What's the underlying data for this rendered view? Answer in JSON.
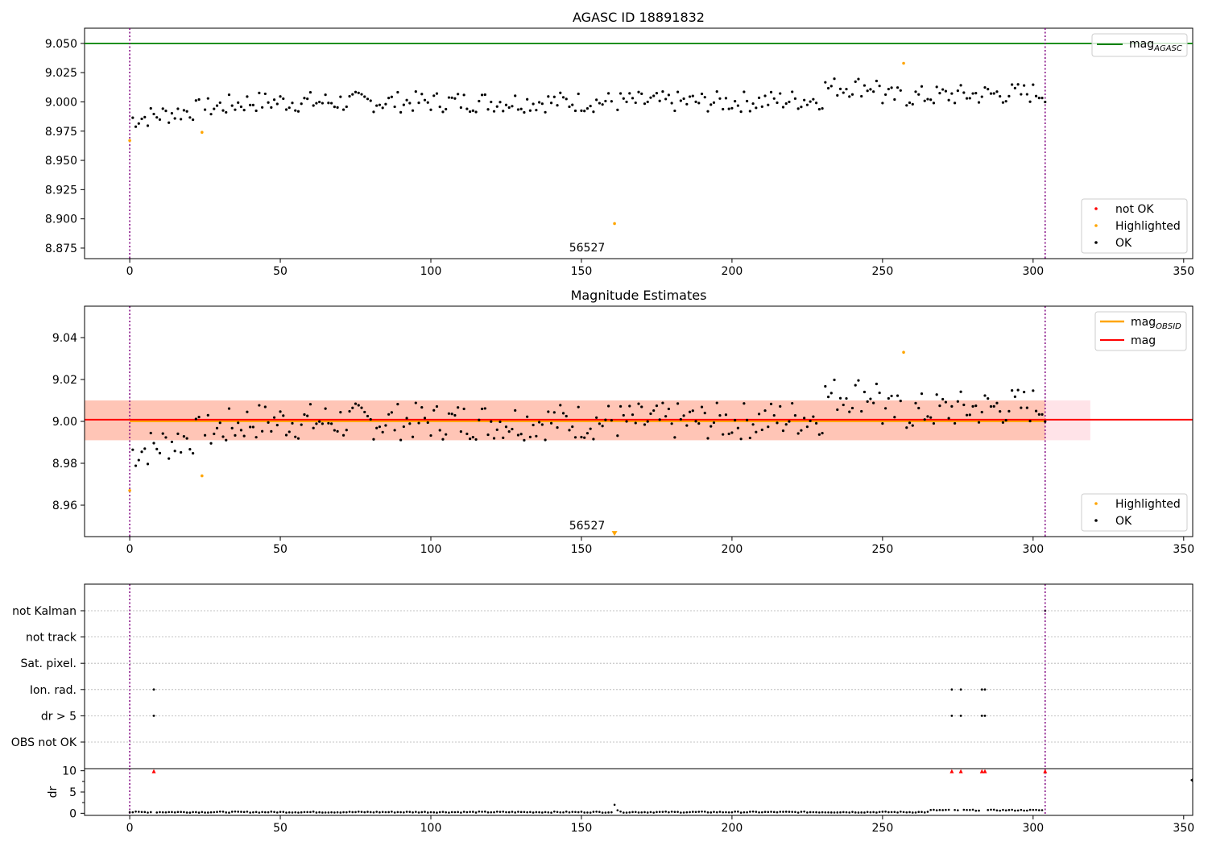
{
  "colors": {
    "ok": "#000000",
    "highlighted": "#ffa500",
    "not_ok": "#ff0000",
    "agasc_line": "#008000",
    "mag_line": "#ff0000",
    "mag_obsid_line": "#ffa500",
    "band_outer": "#ffc0cb",
    "band_inner": "#ffa07a",
    "obsid_divider": "#800080",
    "flag_grid": "#b0b0b0"
  },
  "chart_data": [
    {
      "type": "scatter",
      "title": "AGASC ID 18891832",
      "xlabel": "",
      "ylabel": "",
      "xlim": [
        -15,
        353
      ],
      "ylim": [
        8.866,
        9.063
      ],
      "xticks": [
        0,
        50,
        100,
        150,
        200,
        250,
        300,
        350
      ],
      "yticks": [
        "8.875",
        "8.900",
        "8.925",
        "8.950",
        "8.975",
        "9.000",
        "9.025",
        "9.050"
      ],
      "hlines": [
        {
          "name": "mag_AGASC",
          "label_main": "mag",
          "label_sub": "AGASC",
          "y": 9.05,
          "color": "#008000"
        }
      ],
      "vlines_x": [
        0,
        304
      ],
      "annotations": [
        {
          "text": "56527",
          "x": 152,
          "y": 8.871
        }
      ],
      "highlighted_points": [
        {
          "x": 0,
          "y": 8.967
        },
        {
          "x": 24,
          "y": 8.974
        },
        {
          "x": 161,
          "y": 8.896
        },
        {
          "x": 257,
          "y": 9.033
        }
      ],
      "not_ok_points": [],
      "legend_lines_position": "top-right",
      "legend_points_position": "lower-right",
      "legend_points": [
        {
          "label": "not OK",
          "color": "#ff0000"
        },
        {
          "label": "Highlighted",
          "color": "#ffa500"
        },
        {
          "label": "OK",
          "color": "#000000"
        }
      ]
    },
    {
      "type": "scatter",
      "title": "Magnitude Estimates",
      "xlabel": "",
      "ylabel": "",
      "xlim": [
        -15,
        353
      ],
      "ylim": [
        8.945,
        9.055
      ],
      "xticks": [
        0,
        50,
        100,
        150,
        200,
        250,
        300,
        350
      ],
      "yticks": [
        "8.96",
        "8.98",
        "9.00",
        "9.02",
        "9.04"
      ],
      "hlines": [
        {
          "name": "mag_OBSID",
          "label_main": "mag",
          "label_sub": "OBSID",
          "y": 9.0,
          "x_range": [
            0,
            304
          ],
          "color": "#ffa500"
        },
        {
          "name": "mag",
          "label_main": "mag",
          "label_sub": "",
          "y": 9.0008,
          "x_range": [
            -15,
            353
          ],
          "color": "#ff0000"
        }
      ],
      "bands": [
        {
          "y_range": [
            8.991,
            9.01
          ],
          "x_range": [
            -15,
            319
          ],
          "color": "#ffc0cb"
        },
        {
          "y_range": [
            8.991,
            9.01
          ],
          "x_range": [
            -15,
            304
          ],
          "color": "#ffa07a"
        }
      ],
      "vlines_x": [
        0,
        304
      ],
      "annotations": [
        {
          "text": "56527",
          "x": 152,
          "y": 8.9485
        }
      ],
      "highlighted_points": [
        {
          "x": 0,
          "y": 8.967
        },
        {
          "x": 24,
          "y": 8.974
        },
        {
          "x": 257,
          "y": 9.033
        }
      ],
      "offscale_markers": [
        {
          "x": 161,
          "y": 8.9465
        }
      ],
      "legend_lines_position": "top-right",
      "legend_points_position": "lower-right",
      "legend_points": [
        {
          "label": "Highlighted",
          "color": "#ffa500"
        },
        {
          "label": "OK",
          "color": "#000000"
        }
      ]
    },
    {
      "type": "scatter",
      "title": "",
      "xlabel": "",
      "ylabel": "",
      "xlim": [
        -15,
        353
      ],
      "xticks": [
        0,
        50,
        100,
        150,
        200,
        250,
        300,
        350
      ],
      "vlines_x": [
        0,
        304
      ],
      "flag_rows": [
        "not Kalman",
        "not track",
        "Sat. pixel.",
        "Ion. rad.",
        "dr > 5",
        "OBS not OK"
      ],
      "flag_points": {
        "not Kalman": [
          304
        ],
        "not track": [],
        "Sat. pixel.": [],
        "Ion. rad.": [
          8,
          273,
          276,
          283,
          284
        ],
        "dr > 5": [
          8,
          273,
          276,
          283,
          284
        ],
        "OBS not OK": []
      }
    },
    {
      "type": "scatter",
      "title": "",
      "xlabel": "",
      "ylabel": "dr",
      "xlim": [
        -15,
        353
      ],
      "ylim": [
        -0.5,
        10.5
      ],
      "xticks": [
        0,
        50,
        100,
        150,
        200,
        250,
        300,
        350
      ],
      "yticks": [
        0,
        5,
        10
      ],
      "vlines_x": [
        0,
        304
      ],
      "clipped_markers": [
        {
          "x": 8
        },
        {
          "x": 273
        },
        {
          "x": 276
        },
        {
          "x": 283
        },
        {
          "x": 284
        },
        {
          "x": 304
        }
      ],
      "special_points": [
        {
          "x": 161,
          "y": 2.0
        },
        {
          "x": 162,
          "y": 0.7
        }
      ]
    }
  ]
}
